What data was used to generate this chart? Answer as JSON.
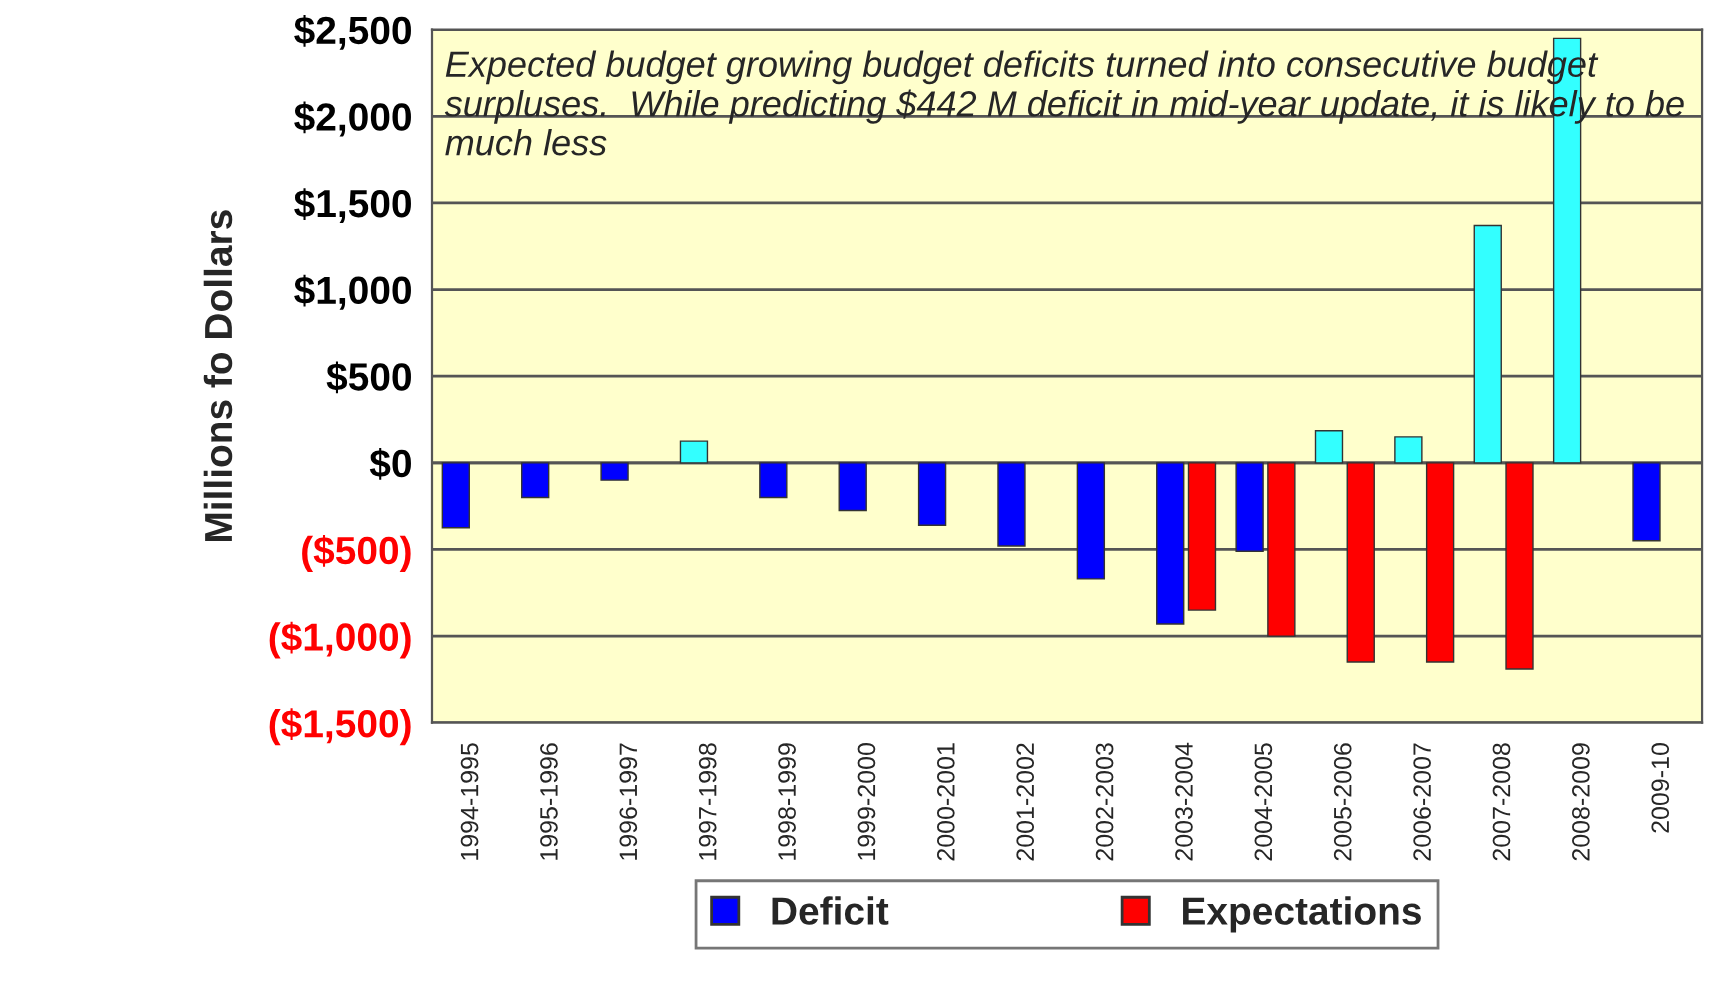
{
  "chart_data": {
    "type": "bar",
    "ylabel": "Millions fo Dollars",
    "categories": [
      "1994-1995",
      "1995-1996",
      "1996-1997",
      "1997-1998",
      "1998-1999",
      "1999-2000",
      "2000-2001",
      "2001-2002",
      "2002-2003",
      "2003-2004",
      "2004-2005",
      "2005-2006",
      "2006-2007",
      "2007-2008",
      "2008-2009",
      "2009-10"
    ],
    "series": [
      {
        "name": "Deficit",
        "color": "#0000ff",
        "colors": [
          "#0000ff",
          "#0000ff",
          "#0000ff",
          "#33ffff",
          "#0000ff",
          "#0000ff",
          "#0000ff",
          "#0000ff",
          "#0000ff",
          "#0000ff",
          "#0000ff",
          "#33ffff",
          "#33ffff",
          "#33ffff",
          "#33ffff",
          "#0000ff"
        ],
        "values": [
          -375,
          -200,
          -100,
          125,
          -200,
          -275,
          -360,
          -480,
          -670,
          -930,
          -510,
          185,
          150,
          1370,
          2450,
          -450
        ]
      },
      {
        "name": "Expectations",
        "color": "#ff0000",
        "values": [
          null,
          null,
          null,
          null,
          null,
          null,
          null,
          null,
          null,
          -850,
          -1000,
          -1150,
          -1150,
          -1190,
          null,
          null
        ]
      }
    ],
    "ylim": [
      -1500,
      2500
    ],
    "yticks": [
      {
        "value": -1500,
        "label": "($1,500)"
      },
      {
        "value": -1000,
        "label": "($1,000)"
      },
      {
        "value": -500,
        "label": "($500)"
      },
      {
        "value": 0,
        "label": "$0"
      },
      {
        "value": 500,
        "label": "$500"
      },
      {
        "value": 1000,
        "label": "$1,000"
      },
      {
        "value": 1500,
        "label": "$1,500"
      },
      {
        "value": 2000,
        "label": "$2,000"
      },
      {
        "value": 2500,
        "label": "$2,500"
      }
    ],
    "grid": "y",
    "legend": "bottom",
    "annotations": [
      "Expected budget growing budget deficits turned into consecutive budget surpluses.  While predicting $442 M deficit in mid-year update, it is likely to be much less"
    ]
  }
}
